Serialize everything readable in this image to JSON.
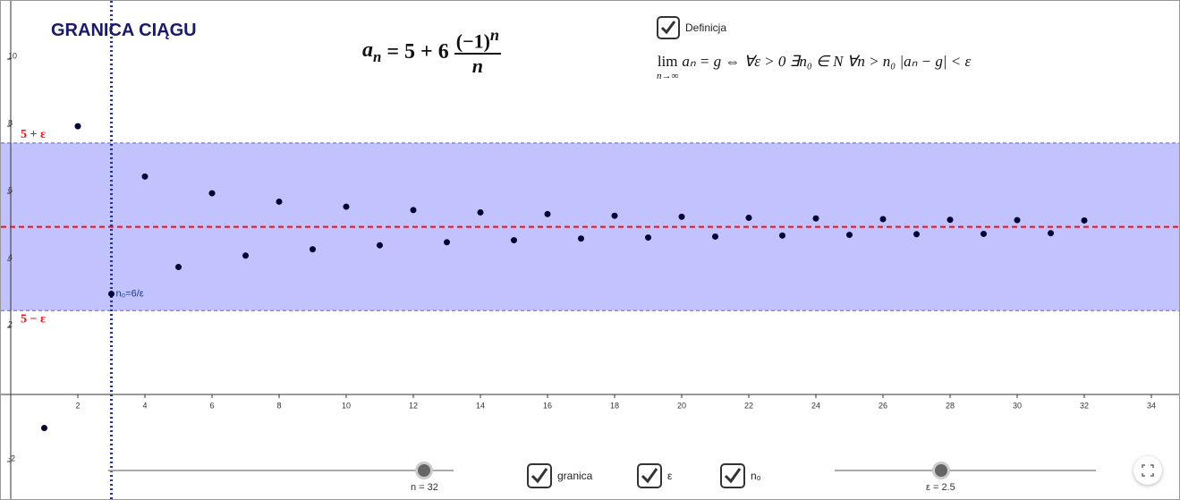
{
  "chart_data": {
    "type": "scatter",
    "title": "GRANICA CIĄGU",
    "formula": {
      "lhs": "a",
      "lhs_sub": "n",
      "rhs": "= 5 + 6",
      "numerator": "(−1)",
      "numerator_sup": "n",
      "denominator": "n"
    },
    "definition_checkbox": "Definicja",
    "definition": {
      "lim": "lim",
      "lim_sub": "n→∞",
      "body": "aₙ = g  ⇔ ∀ε > 0 ∃n₀ ∈ N  ∀n > n₀ |aₙ − g| < ε"
    },
    "x": [
      1,
      2,
      3,
      4,
      5,
      6,
      7,
      8,
      9,
      10,
      11,
      12,
      13,
      14,
      15,
      16,
      17,
      18,
      19,
      20,
      21,
      22,
      23,
      24,
      25,
      26,
      27,
      28,
      29,
      30,
      31,
      32
    ],
    "values": [
      -1,
      8,
      3,
      6.5,
      3.8,
      6,
      4.14,
      5.75,
      4.33,
      5.6,
      4.45,
      5.5,
      4.54,
      5.43,
      4.6,
      5.38,
      4.65,
      5.33,
      4.68,
      5.3,
      4.71,
      5.27,
      4.74,
      5.25,
      4.76,
      5.23,
      4.78,
      5.21,
      4.79,
      5.2,
      4.81,
      5.19
    ],
    "color": "#000033",
    "xlim": [
      -0.08,
      34.8
    ],
    "ylim": [
      -3.04,
      11.63
    ],
    "xticks": [
      2,
      4,
      6,
      8,
      10,
      12,
      14,
      16,
      18,
      20,
      22,
      24,
      26,
      28,
      30,
      32,
      34
    ],
    "yticks": [
      -2,
      2,
      4,
      6,
      8,
      10
    ],
    "limit": 5,
    "limit_color": "#ee1111",
    "epsilon": 2.5,
    "band_color": "#bfbfff",
    "n0": 3,
    "n0_color": "#1133cc",
    "band_labels": [
      "5 + ε",
      "5 − ε"
    ],
    "n0_label": "n₀=6/ε",
    "controls": {
      "n_slider": "n = 32",
      "granica": "granica",
      "epsilon": "ε",
      "n0": "n₀",
      "epsilon_slider": "ε = 2.5"
    }
  }
}
